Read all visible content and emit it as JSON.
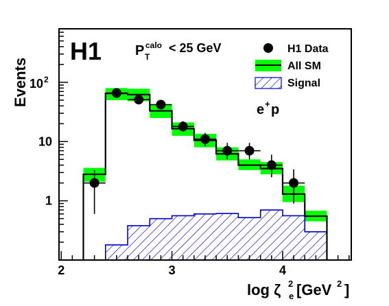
{
  "chart_data": {
    "type": "histogram",
    "experiment_label": "H1",
    "cut_label": {
      "symbol": "P",
      "superscript": "calo",
      "subscript": "T",
      "text": "< 25 GeV"
    },
    "beam_label": {
      "base": "e",
      "superscript": "+",
      "rest": "p"
    },
    "ylabel": "Events",
    "xlabel": {
      "prefix": "log ζ",
      "sup": "2",
      "sub": "e",
      "unit_open": " [GeV",
      "unit_sup": "2",
      "unit_close": "]"
    },
    "x_ticks": [
      "2",
      "3",
      "4"
    ],
    "y_ticks": [
      {
        "value": 1,
        "label": "1"
      },
      {
        "value": 10,
        "label": "10"
      },
      {
        "value": 100,
        "base": "10",
        "exp": "2"
      }
    ],
    "xlim": [
      1.98,
      4.62
    ],
    "ylim": [
      0.1,
      800
    ],
    "yscale": "log",
    "bin_edges": [
      2.2,
      2.4,
      2.6,
      2.8,
      3.0,
      3.2,
      3.4,
      3.6,
      3.8,
      4.0,
      4.2,
      4.4
    ],
    "all_sm": {
      "values": [
        2.8,
        65,
        62,
        33,
        16.5,
        10.5,
        6.2,
        4.0,
        3.5,
        1.3,
        0.55
      ],
      "band_low": [
        2.1,
        50,
        48,
        25,
        12.5,
        8.0,
        4.8,
        3.3,
        2.8,
        0.95,
        0.45
      ],
      "band_high": [
        3.6,
        80,
        78,
        42,
        21,
        13.5,
        8.0,
        5.0,
        4.5,
        1.8,
        0.68
      ]
    },
    "signal": {
      "values": [
        0.1,
        0.18,
        0.38,
        0.5,
        0.56,
        0.6,
        0.61,
        0.52,
        0.7,
        0.56,
        0.3
      ]
    },
    "h1_data": {
      "x": [
        2.3,
        2.5,
        2.7,
        2.9,
        3.1,
        3.3,
        3.5,
        3.7,
        3.9,
        4.1
      ],
      "y": [
        2,
        66,
        51,
        42,
        18,
        11,
        7,
        7,
        4,
        2
      ],
      "err_low": [
        0.6,
        57,
        43,
        35,
        14.5,
        8.3,
        5,
        5,
        2.5,
        0.9
      ],
      "err_high": [
        3.3,
        75,
        59,
        49,
        22,
        14,
        9.5,
        9.5,
        6,
        3.4
      ]
    },
    "legend": [
      {
        "label": "H1 Data",
        "kind": "marker"
      },
      {
        "label": "All SM",
        "kind": "band"
      },
      {
        "label": "Signal",
        "kind": "hatch"
      }
    ],
    "legend_position": "top-right",
    "colors": {
      "band": "#00ff00",
      "signal": "#0000cc",
      "line": "#000000"
    }
  }
}
